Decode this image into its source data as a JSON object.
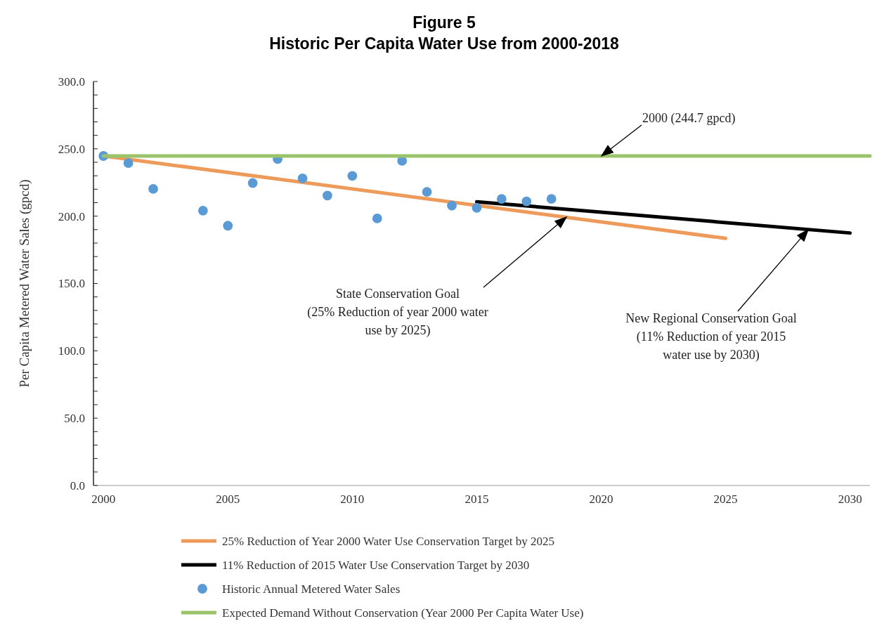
{
  "chart_data": {
    "type": "line",
    "title": "Figure 5",
    "subtitle": "Historic Per Capita Water Use from 2000-2018",
    "ylabel": "Per Capita Metered Water Sales (gpcd)",
    "xlim": [
      1999.6,
      2030.8
    ],
    "xticks": [
      2000,
      2005,
      2010,
      2015,
      2020,
      2025,
      2030
    ],
    "ylim": [
      0,
      300
    ],
    "yticks": [
      {
        "value": 0,
        "label": "0.0"
      },
      {
        "value": 10,
        "label": null
      },
      {
        "value": 20,
        "label": null
      },
      {
        "value": 30,
        "label": null
      },
      {
        "value": 40,
        "label": null
      },
      {
        "value": 50,
        "label": "50.0"
      },
      {
        "value": 60,
        "label": null
      },
      {
        "value": 70,
        "label": null
      },
      {
        "value": 80,
        "label": null
      },
      {
        "value": 90,
        "label": null
      },
      {
        "value": 100,
        "label": "100.0"
      },
      {
        "value": 110,
        "label": null
      },
      {
        "value": 120,
        "label": null
      },
      {
        "value": 130,
        "label": null
      },
      {
        "value": 140,
        "label": null
      },
      {
        "value": 150,
        "label": "150.0"
      },
      {
        "value": 160,
        "label": null
      },
      {
        "value": 170,
        "label": null
      },
      {
        "value": 180,
        "label": null
      },
      {
        "value": 190,
        "label": null
      },
      {
        "value": 200,
        "label": "200.0"
      },
      {
        "value": 210,
        "label": null
      },
      {
        "value": 220,
        "label": null
      },
      {
        "value": 230,
        "label": null
      },
      {
        "value": 240,
        "label": null
      },
      {
        "value": 250,
        "label": "250.0"
      },
      {
        "value": 260,
        "label": null
      },
      {
        "value": 270,
        "label": null
      },
      {
        "value": 280,
        "label": null
      },
      {
        "value": 290,
        "label": null
      },
      {
        "value": 300,
        "label": "300.0"
      }
    ],
    "grid": false,
    "legend": "bottom",
    "line_style": "solid",
    "series": [
      {
        "name": "25% Reduction of Year 2000 Water Use Conservation Target by 2025",
        "type": "line",
        "marker": "none",
        "color": "#ed9a5a",
        "x": [
          2000,
          2025
        ],
        "values": [
          244.7,
          183.5
        ]
      },
      {
        "name": "11% Reduction of 2015 Water Use Conservation Target by 2030",
        "type": "line",
        "marker": "none",
        "color": "#000000",
        "x": [
          2015,
          2030
        ],
        "values": [
          210.7,
          187.5
        ]
      },
      {
        "name": "Historic Annual Metered Water Sales",
        "type": "scatter",
        "marker": "circle",
        "color": "#5b9bd5",
        "x": [
          2000,
          2001,
          2002,
          2004,
          2005,
          2006,
          2007,
          2008,
          2009,
          2010,
          2011,
          2012,
          2013,
          2014,
          2015,
          2016,
          2017,
          2018
        ],
        "values": [
          244.7,
          239.4,
          220.2,
          204.1,
          192.9,
          224.6,
          242.4,
          228.1,
          215.3,
          229.9,
          198.3,
          241.1,
          218.0,
          207.8,
          206.2,
          212.8,
          211.0,
          212.8
        ]
      },
      {
        "name": "Expected Demand Without Conservation (Year 2000 Per Capita Water Use)",
        "type": "line",
        "marker": "none",
        "color": "#9bc46a",
        "x": [
          2000,
          2030.8
        ],
        "values": [
          244.7,
          244.7
        ]
      }
    ],
    "annotations": [
      "2000 (244.7 gpcd)",
      "State Conservation Goal\n(25% Reduction of year 2000 water\nuse by 2025)",
      "New Regional Conservation Goal\n(11% Reduction of year 2015\nwater use by 2030)"
    ]
  }
}
